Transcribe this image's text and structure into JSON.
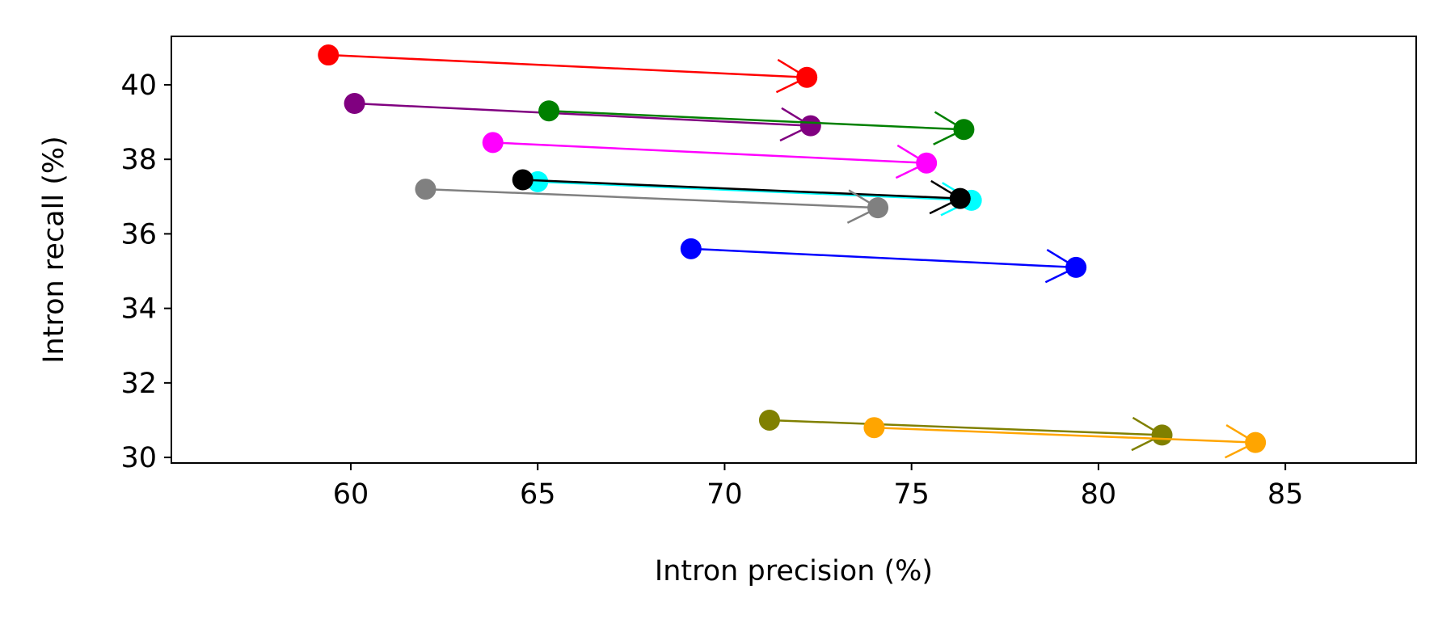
{
  "chart_data": {
    "type": "scatter",
    "title": "",
    "xlabel": "Intron precision (%)",
    "ylabel": "Intron recall (%)",
    "xlim": [
      55.2,
      88.5
    ],
    "ylim": [
      29.85,
      41.3
    ],
    "xticks": [
      60,
      65,
      70,
      75,
      80,
      85
    ],
    "yticks": [
      30,
      32,
      34,
      36,
      38,
      40
    ],
    "grid": false,
    "legend": "none",
    "series": [
      {
        "color": "#ff0000",
        "start": {
          "x": 59.4,
          "y": 40.8
        },
        "end": {
          "x": 72.2,
          "y": 40.2
        }
      },
      {
        "color": "#800080",
        "start": {
          "x": 60.1,
          "y": 39.5
        },
        "end": {
          "x": 72.3,
          "y": 38.9
        }
      },
      {
        "color": "#008000",
        "start": {
          "x": 65.3,
          "y": 39.3
        },
        "end": {
          "x": 76.4,
          "y": 38.8
        }
      },
      {
        "color": "#ff00ff",
        "start": {
          "x": 63.8,
          "y": 38.45
        },
        "end": {
          "x": 75.4,
          "y": 37.9
        }
      },
      {
        "color": "#00ffff",
        "start": {
          "x": 65.0,
          "y": 37.4
        },
        "end": {
          "x": 76.6,
          "y": 36.9
        }
      },
      {
        "color": "#000000",
        "start": {
          "x": 64.6,
          "y": 37.45
        },
        "end": {
          "x": 76.3,
          "y": 36.95
        }
      },
      {
        "color": "#808080",
        "start": {
          "x": 62.0,
          "y": 37.2
        },
        "end": {
          "x": 74.1,
          "y": 36.7
        }
      },
      {
        "color": "#0000ff",
        "start": {
          "x": 69.1,
          "y": 35.6
        },
        "end": {
          "x": 79.4,
          "y": 35.1
        }
      },
      {
        "color": "#808000",
        "start": {
          "x": 71.2,
          "y": 31.0
        },
        "end": {
          "x": 81.7,
          "y": 30.6
        }
      },
      {
        "color": "#ffa500",
        "start": {
          "x": 74.0,
          "y": 30.8
        },
        "end": {
          "x": 84.2,
          "y": 30.4
        }
      }
    ]
  }
}
